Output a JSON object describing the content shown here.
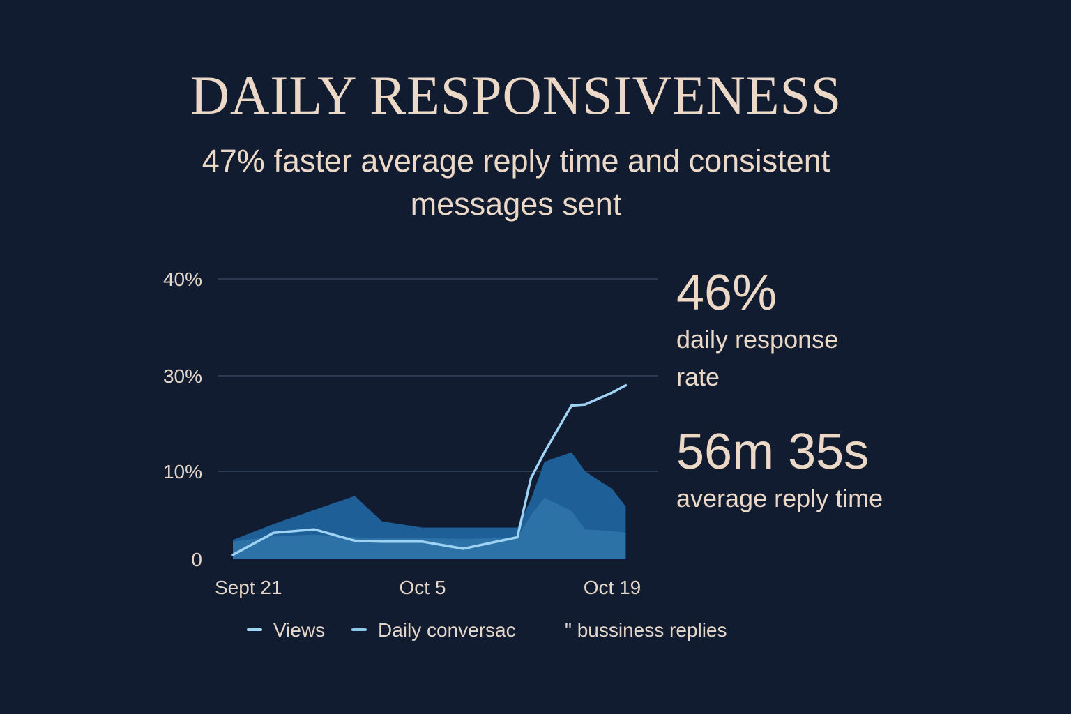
{
  "header": {
    "title": "DAILY RESPONSIVENESS",
    "subtitle": "47% faster average reply time and consistent messages sent"
  },
  "kpis": [
    {
      "value": "46%",
      "label": "daily response rate"
    },
    {
      "value": "56m 35s",
      "label": "average reply time"
    }
  ],
  "legend": [
    {
      "label": "Views",
      "color": "#9fd3f4"
    },
    {
      "label": "Daily conversac",
      "color": "#8cc8ee"
    },
    {
      "label": "\" bussiness replies",
      "color": "#1f5f98"
    }
  ],
  "colors": {
    "background": "#111c31",
    "text": "#ecd8c6",
    "gridline": "#34445d",
    "area_back": "#1f5f98",
    "area_front": "#2f74a8",
    "line": "#9fd3f4"
  },
  "chart_data": {
    "type": "area",
    "x_ticks": [
      "Sept 21",
      "Oct 5",
      "Oct 19"
    ],
    "y_ticks": [
      "0",
      "10%",
      "30%",
      "40%"
    ],
    "x": [
      "Sept 21",
      "Sept 24",
      "Sept 27",
      "Sept 30",
      "Oct 2",
      "Oct 5",
      "Oct 8",
      "Oct 12",
      "Oct 13",
      "Oct 14",
      "Oct 16",
      "Oct 17",
      "Oct 19",
      "Oct 20"
    ],
    "series": [
      {
        "name": "Views",
        "type": "line",
        "values": [
          0.5,
          3.0,
          3.4,
          2.1,
          2.0,
          2.0,
          1.2,
          2.5,
          9.2,
          14.0,
          23.8,
          24.0,
          26.5,
          28.0
        ]
      },
      {
        "name": "Daily conversac",
        "type": "area",
        "values": [
          2.2,
          4.0,
          5.6,
          7.2,
          4.3,
          3.6,
          3.6,
          3.6,
          6.8,
          12.0,
          14.0,
          10.0,
          8.0,
          6.0
        ]
      },
      {
        "name": "\" bussiness replies",
        "type": "area",
        "values": [
          2.0,
          2.6,
          2.8,
          2.5,
          2.4,
          2.4,
          2.3,
          2.5,
          5.0,
          7.0,
          5.5,
          3.4,
          3.2,
          3.0
        ]
      }
    ],
    "grid": true
  }
}
